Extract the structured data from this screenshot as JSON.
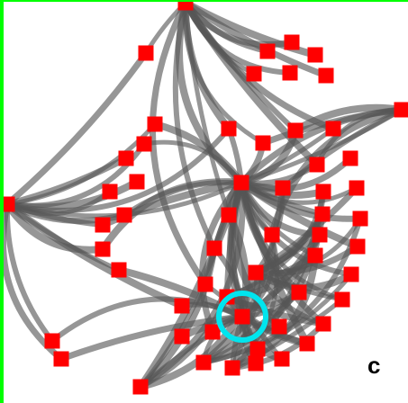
{
  "panel": {
    "label": "c"
  },
  "colors": {
    "background": "#ffffff",
    "node": "#ff0000",
    "edge": "#555555",
    "frame_left": "#00ff00",
    "frame_top": "#00ff00",
    "highlight": "#00e5ee"
  },
  "graph": {
    "node_count": 71,
    "highlighted_nodes": 1,
    "edge_style": "curved bundled"
  }
}
